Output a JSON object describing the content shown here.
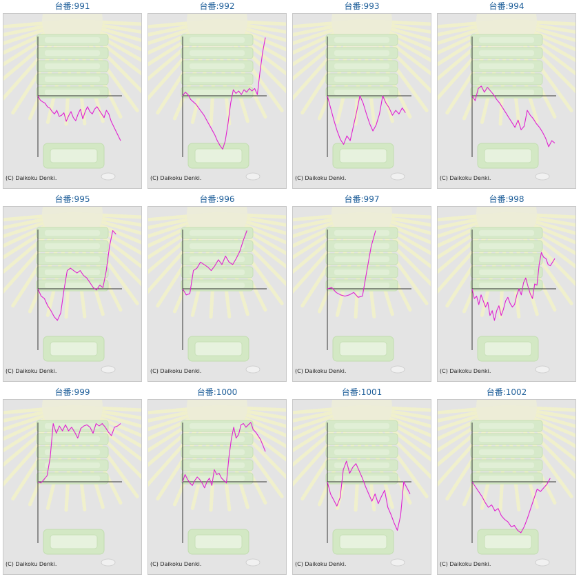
{
  "page": {
    "bg_color": "#ffffff",
    "title_color": "#1f5f9a",
    "line_color": "#e020d0",
    "axis_color": "#333333"
  },
  "chart_data": [
    {
      "type": "line",
      "title": "台番:991",
      "credit": "(C) Daikoku Denki.",
      "grid": false,
      "ylim": [
        -1,
        1
      ],
      "y": [
        0,
        -0.07,
        -0.1,
        -0.12,
        -0.18,
        -0.2,
        -0.26,
        -0.3,
        -0.24,
        -0.34,
        -0.32,
        -0.28,
        -0.42,
        -0.33,
        -0.26,
        -0.36,
        -0.41,
        -0.3,
        -0.22,
        -0.38,
        -0.26,
        -0.18,
        -0.26,
        -0.3,
        -0.22,
        -0.18,
        -0.24,
        -0.3,
        -0.36,
        -0.24,
        -0.3,
        -0.42,
        -0.5,
        -0.58,
        -0.66,
        -0.74
      ]
    },
    {
      "type": "line",
      "title": "台番:992",
      "credit": "(C) Daikoku Denki.",
      "grid": false,
      "ylim": [
        -1,
        1
      ],
      "y": [
        0,
        0.06,
        0.02,
        -0.06,
        -0.1,
        -0.14,
        -0.2,
        -0.26,
        -0.32,
        -0.4,
        -0.48,
        -0.56,
        -0.64,
        -0.74,
        -0.82,
        -0.88,
        -0.74,
        -0.46,
        -0.12,
        0.1,
        0.04,
        0.08,
        0.02,
        0.1,
        0.06,
        0.12,
        0.08,
        0.12,
        0.02,
        0.4,
        0.72,
        0.96
      ]
    },
    {
      "type": "line",
      "title": "台番:993",
      "credit": "(C) Daikoku Denki.",
      "grid": false,
      "ylim": [
        -1,
        1
      ],
      "y": [
        0,
        -0.2,
        -0.4,
        -0.58,
        -0.72,
        -0.8,
        -0.66,
        -0.74,
        -0.5,
        -0.26,
        0,
        -0.12,
        -0.3,
        -0.46,
        -0.58,
        -0.48,
        -0.3,
        0,
        -0.12,
        -0.2,
        -0.32,
        -0.24,
        -0.3,
        -0.2,
        -0.28
      ]
    },
    {
      "type": "line",
      "title": "台番:994",
      "credit": "(C) Daikoku Denki.",
      "grid": false,
      "ylim": [
        -1,
        1
      ],
      "y": [
        0,
        -0.08,
        0.12,
        0.16,
        0.06,
        0.14,
        0.08,
        0.02,
        -0.06,
        -0.12,
        -0.2,
        -0.28,
        -0.36,
        -0.44,
        -0.52,
        -0.4,
        -0.56,
        -0.5,
        -0.24,
        -0.32,
        -0.38,
        -0.46,
        -0.52,
        -0.6,
        -0.7,
        -0.84,
        -0.74,
        -0.78
      ]
    },
    {
      "type": "line",
      "title": "台番:995",
      "credit": "(C) Daikoku Denki.",
      "grid": false,
      "ylim": [
        -1,
        1
      ],
      "y": [
        0,
        -0.12,
        -0.16,
        -0.28,
        -0.36,
        -0.46,
        -0.52,
        -0.4,
        -0.02,
        0.3,
        0.34,
        0.3,
        0.26,
        0.3,
        0.22,
        0.18,
        0.1,
        0.02,
        -0.02,
        0.06,
        0.02,
        0.3,
        0.7,
        0.96,
        0.9
      ]
    },
    {
      "type": "line",
      "title": "台番:996",
      "credit": "(C) Daikoku Denki.",
      "grid": false,
      "ylim": [
        -1,
        1
      ],
      "y": [
        0,
        -0.1,
        -0.08,
        0.3,
        0.34,
        0.44,
        0.4,
        0.36,
        0.3,
        0.38,
        0.48,
        0.4,
        0.54,
        0.44,
        0.4,
        0.5,
        0.62,
        0.8,
        0.96
      ]
    },
    {
      "type": "line",
      "title": "台番:997",
      "credit": "(C) Daikoku Denki.",
      "grid": false,
      "ylim": [
        -1,
        1
      ],
      "y": [
        0,
        0.02,
        -0.06,
        -0.1,
        -0.12,
        -0.1,
        -0.06,
        -0.14,
        -0.12,
        0.3,
        0.7,
        0.96
      ]
    },
    {
      "type": "line",
      "title": "台番:998",
      "credit": "(C) Daikoku Denki.",
      "grid": false,
      "ylim": [
        -1,
        1
      ],
      "y": [
        0,
        -0.16,
        -0.12,
        -0.26,
        -0.1,
        -0.2,
        -0.3,
        -0.22,
        -0.44,
        -0.36,
        -0.52,
        -0.36,
        -0.28,
        -0.44,
        -0.34,
        -0.2,
        -0.14,
        -0.24,
        -0.3,
        -0.26,
        -0.1,
        0,
        -0.1,
        0.1,
        0.18,
        0.04,
        -0.08,
        -0.16,
        0.08,
        0.06,
        0.4,
        0.6,
        0.52,
        0.5,
        0.4,
        0.38,
        0.44,
        0.5
      ]
    },
    {
      "type": "line",
      "title": "台番:999",
      "credit": "(C) Daikoku Denki.",
      "grid": false,
      "ylim": [
        -1,
        1
      ],
      "y": [
        0,
        -0.02,
        0.04,
        0.1,
        0.4,
        0.96,
        0.8,
        0.92,
        0.84,
        0.94,
        0.84,
        0.9,
        0.82,
        0.72,
        0.88,
        0.92,
        0.94,
        0.9,
        0.8,
        0.96,
        0.92,
        0.96,
        0.9,
        0.82,
        0.76,
        0.9,
        0.92,
        0.96
      ]
    },
    {
      "type": "line",
      "title": "台番:1000",
      "credit": "(C) Daikoku Denki.",
      "grid": false,
      "ylim": [
        -1,
        1
      ],
      "y": [
        0,
        0.12,
        0.04,
        -0.02,
        -0.06,
        0.02,
        0.08,
        0.04,
        -0.02,
        -0.1,
        0,
        0.06,
        -0.06,
        0.2,
        0.12,
        0.14,
        0.06,
        0.02,
        -0.02,
        0.4,
        0.7,
        0.9,
        0.72,
        0.78,
        0.94,
        0.96,
        0.9,
        0.94,
        0.98,
        0.86,
        0.82,
        0.76,
        0.7,
        0.6,
        0.5
      ]
    },
    {
      "type": "line",
      "title": "台番:1001",
      "credit": "(C) Daikoku Denki.",
      "grid": false,
      "ylim": [
        -1,
        1
      ],
      "y": [
        0,
        -0.2,
        -0.3,
        -0.4,
        -0.26,
        0.2,
        0.34,
        0.14,
        0.24,
        0.3,
        0.18,
        0.06,
        -0.08,
        -0.2,
        -0.32,
        -0.2,
        -0.36,
        -0.24,
        -0.14,
        -0.42,
        -0.54,
        -0.68,
        -0.8,
        -0.56,
        0,
        -0.1,
        -0.2
      ]
    },
    {
      "type": "line",
      "title": "台番:1002",
      "credit": "(C) Daikoku Denki.",
      "grid": false,
      "ylim": [
        -1,
        1
      ],
      "y": [
        0,
        -0.08,
        -0.16,
        -0.24,
        -0.34,
        -0.42,
        -0.38,
        -0.48,
        -0.44,
        -0.56,
        -0.62,
        -0.66,
        -0.74,
        -0.72,
        -0.8,
        -0.84,
        -0.74,
        -0.6,
        -0.44,
        -0.28,
        -0.12,
        -0.16,
        -0.1,
        -0.04,
        0.06
      ]
    }
  ]
}
